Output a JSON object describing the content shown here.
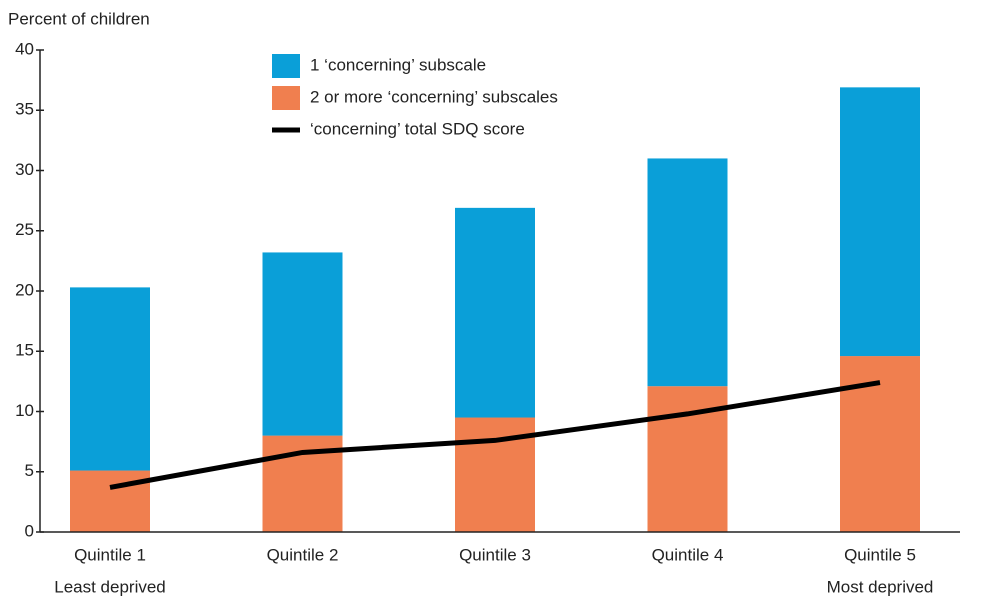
{
  "chart_data": {
    "type": "bar",
    "stacked": true,
    "y_label": "Percent of children",
    "categories": [
      "Quintile 1",
      "Quintile 2",
      "Quintile 3",
      "Quintile 4",
      "Quintile 5"
    ],
    "category_sublabels": [
      "Least deprived",
      null,
      null,
      null,
      "Most deprived"
    ],
    "series": [
      {
        "name": "1 ‘concerning’ subscale",
        "type": "bar",
        "color": "#0a9fd8",
        "values": [
          15.2,
          15.2,
          17.4,
          18.9,
          22.3
        ]
      },
      {
        "name": "2 or more ‘concerning’ subscales",
        "type": "bar",
        "color": "#f07f4f",
        "values": [
          5.1,
          8.0,
          9.5,
          12.1,
          14.6
        ]
      },
      {
        "name": "‘concerning’ total SDQ score",
        "type": "line",
        "color": "#000000",
        "values": [
          3.7,
          6.6,
          7.6,
          9.8,
          12.4
        ]
      }
    ],
    "stack_order": [
      1,
      0
    ],
    "ylim": [
      0,
      40
    ],
    "yticks": [
      0,
      5,
      10,
      15,
      20,
      25,
      30,
      35,
      40
    ],
    "grid": false
  }
}
